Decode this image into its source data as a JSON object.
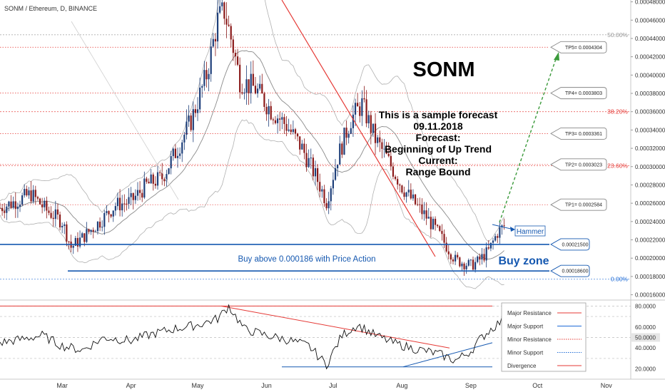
{
  "header": {
    "symbol": "SONM / Ethereum, D, BINANCE"
  },
  "chart_data": [
    {
      "type": "candlestick",
      "ylim": [
        0.000155,
        0.000482
      ],
      "y_ticks": [
        "0.00048000",
        "0.00046000",
        "0.00044000",
        "0.00042000",
        "0.00040000",
        "0.00038000",
        "0.00036000",
        "0.00034000",
        "0.00032000",
        "0.00030000",
        "0.00028000",
        "0.00026000",
        "0.00024000",
        "0.00022000",
        "0.00020000",
        "0.00018000",
        "0.00016000"
      ],
      "y_tick_values": [
        0.00048,
        0.00046,
        0.00044,
        0.00042,
        0.0004,
        0.00038,
        0.00036,
        0.00034,
        0.00032,
        0.0003,
        0.00028,
        0.00026,
        0.00024,
        0.00022,
        0.0002,
        0.00018,
        0.00016
      ],
      "x_ticks": [
        "Mar",
        "Apr",
        "May",
        "Jun",
        "Jul",
        "Aug",
        "Sep",
        "Oct",
        "Nov"
      ],
      "x_tick_dates": [
        "2018-03-01",
        "2018-04-01",
        "2018-05-01",
        "2018-06-01",
        "2018-07-01",
        "2018-08-01",
        "2018-09-01",
        "2018-10-01",
        "2018-11-01"
      ],
      "date_range": [
        "2018-02-01",
        "2018-11-12"
      ],
      "fib_levels": [
        {
          "label": "50.00%",
          "value": 0.000444,
          "color": "#999999"
        },
        {
          "label": "38.20%",
          "value": 0.00036,
          "color": "#e53935"
        },
        {
          "label": "23.60%",
          "value": 0.000301,
          "color": "#e53935"
        },
        {
          "label": "0.00%",
          "value": 0.000177,
          "color": "#1e6bd6"
        }
      ],
      "targets": [
        {
          "label": "TP5= 0.0004304",
          "value": 0.0004304
        },
        {
          "label": "TP4= 0.0003803",
          "value": 0.0003803
        },
        {
          "label": "TP3= 0.0003361",
          "value": 0.0003361
        },
        {
          "label": "TP2= 0.0003023",
          "value": 0.0003023
        },
        {
          "label": "TP1= 0.0002584",
          "value": 0.0002584
        }
      ],
      "support_levels": [
        {
          "label": "0.00021500",
          "value": 0.000215
        },
        {
          "label": "0.00018600",
          "value": 0.000186
        }
      ],
      "close_series": [
        [
          "2018-02-01",
          0.000255
        ],
        [
          "2018-02-08",
          0.000262
        ],
        [
          "2018-02-15",
          0.00027
        ],
        [
          "2018-02-22",
          0.000252
        ],
        [
          "2018-03-01",
          0.00024
        ],
        [
          "2018-03-05",
          0.000212
        ],
        [
          "2018-03-10",
          0.000222
        ],
        [
          "2018-03-18",
          0.00024
        ],
        [
          "2018-03-25",
          0.000258
        ],
        [
          "2018-04-01",
          0.000262
        ],
        [
          "2018-04-08",
          0.00028
        ],
        [
          "2018-04-15",
          0.000288
        ],
        [
          "2018-04-22",
          0.00032
        ],
        [
          "2018-04-28",
          0.00035
        ],
        [
          "2018-05-05",
          0.0004
        ],
        [
          "2018-05-10",
          0.00046
        ],
        [
          "2018-05-13",
          0.00047
        ],
        [
          "2018-05-17",
          0.00043
        ],
        [
          "2018-05-20",
          0.000395
        ],
        [
          "2018-05-27",
          0.000385
        ],
        [
          "2018-06-03",
          0.000362
        ],
        [
          "2018-06-10",
          0.000345
        ],
        [
          "2018-06-17",
          0.00032
        ],
        [
          "2018-06-24",
          0.000285
        ],
        [
          "2018-06-28",
          0.000262
        ],
        [
          "2018-07-03",
          0.00031
        ],
        [
          "2018-07-09",
          0.000352
        ],
        [
          "2018-07-14",
          0.000368
        ],
        [
          "2018-07-20",
          0.00033
        ],
        [
          "2018-07-25",
          0.00031
        ],
        [
          "2018-08-01",
          0.000278
        ],
        [
          "2018-08-06",
          0.000262
        ],
        [
          "2018-08-12",
          0.000245
        ],
        [
          "2018-08-18",
          0.000225
        ],
        [
          "2018-08-25",
          0.000198
        ],
        [
          "2018-09-01",
          0.000192
        ],
        [
          "2018-09-04",
          0.000196
        ],
        [
          "2018-09-09",
          0.000208
        ],
        [
          "2018-09-13",
          0.000228
        ],
        [
          "2018-09-16",
          0.000235
        ]
      ],
      "texts": {
        "title": "SONM",
        "forecast_lines": [
          "This is a sample forecast",
          "09.11.2018",
          "Forecast:",
          "Beginning of Up Trend",
          "Current:",
          "Range Bound"
        ],
        "buy_above": "Buy above 0.000186 with Price Action",
        "buy_zone": "Buy zone",
        "hammer": "Hammer"
      }
    },
    {
      "type": "line",
      "name": "oscillator",
      "ylim": [
        15,
        85
      ],
      "y_ticks": [
        "80.0000",
        "60.0000",
        "50.0000",
        "40.0000",
        "20.0000"
      ],
      "y_tick_values": [
        80,
        60,
        50,
        40,
        20
      ],
      "current_value": "50.0000",
      "series": [
        [
          "2018-02-01",
          45
        ],
        [
          "2018-02-10",
          48
        ],
        [
          "2018-02-20",
          52
        ],
        [
          "2018-03-01",
          42
        ],
        [
          "2018-03-10",
          38
        ],
        [
          "2018-03-20",
          50
        ],
        [
          "2018-04-01",
          47
        ],
        [
          "2018-04-10",
          53
        ],
        [
          "2018-04-20",
          58
        ],
        [
          "2018-05-01",
          62
        ],
        [
          "2018-05-10",
          68
        ],
        [
          "2018-05-15",
          80
        ],
        [
          "2018-05-22",
          58
        ],
        [
          "2018-06-01",
          52
        ],
        [
          "2018-06-10",
          48
        ],
        [
          "2018-06-20",
          42
        ],
        [
          "2018-06-28",
          24
        ],
        [
          "2018-07-05",
          52
        ],
        [
          "2018-07-12",
          62
        ],
        [
          "2018-07-20",
          52
        ],
        [
          "2018-07-28",
          45
        ],
        [
          "2018-08-05",
          40
        ],
        [
          "2018-08-12",
          37
        ],
        [
          "2018-08-18",
          34
        ],
        [
          "2018-08-25",
          28
        ],
        [
          "2018-09-01",
          37
        ],
        [
          "2018-09-05",
          48
        ],
        [
          "2018-09-10",
          58
        ],
        [
          "2018-09-15",
          66
        ]
      ],
      "legend": [
        {
          "label": "Major Resistance",
          "color": "#e53935",
          "style": "solid"
        },
        {
          "label": "Major Support",
          "color": "#1e6bd6",
          "style": "solid"
        },
        {
          "label": "Minor Resistance",
          "color": "#e53935",
          "style": "dotted"
        },
        {
          "label": "Minor Support",
          "color": "#1e6bd6",
          "style": "dotted"
        },
        {
          "label": "Divergence",
          "color": "#e53935",
          "style": "solid"
        }
      ]
    }
  ],
  "colors": {
    "up": "#1e3f7a",
    "down": "#8b1a1a",
    "support": "#1558b0",
    "resistance": "#e53935",
    "projection": "#3b9a3b"
  }
}
